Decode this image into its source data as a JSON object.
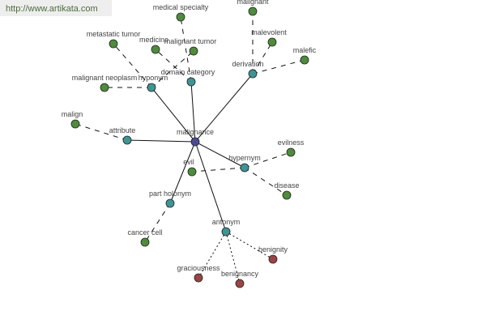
{
  "watermark": "http://www.artikata.com",
  "colors": {
    "center": "#4a4a94",
    "relation": "#3f9494",
    "related": "#4e8c3c",
    "antonym_term": "#9a4444"
  },
  "center": {
    "id": "malignance",
    "label": "malignance"
  },
  "relations": [
    {
      "id": "hyponym",
      "label": "hyponym",
      "terms": [
        "metastatic tumor",
        "malignant tumor",
        "malignant neoplasm"
      ],
      "style": "dashed"
    },
    {
      "id": "domain",
      "label": "domain category",
      "terms": [
        "medical specialty",
        "medicine"
      ],
      "style": "dashed"
    },
    {
      "id": "derivation",
      "label": "derivation",
      "terms": [
        "malignant",
        "malevolent",
        "malefic"
      ],
      "style": "dashed"
    },
    {
      "id": "attribute",
      "label": "attribute",
      "terms": [
        "malign"
      ],
      "style": "dashed"
    },
    {
      "id": "hypernym",
      "label": "hypernym",
      "terms": [
        "evil",
        "evilness",
        "disease"
      ],
      "style": "dashed"
    },
    {
      "id": "holonym",
      "label": "part holonym",
      "terms": [
        "cancer cell"
      ],
      "style": "dashed"
    },
    {
      "id": "antonym",
      "label": "antonym",
      "terms": [
        "benignity",
        "graciousness",
        "benignancy"
      ],
      "style": "dotted"
    }
  ]
}
